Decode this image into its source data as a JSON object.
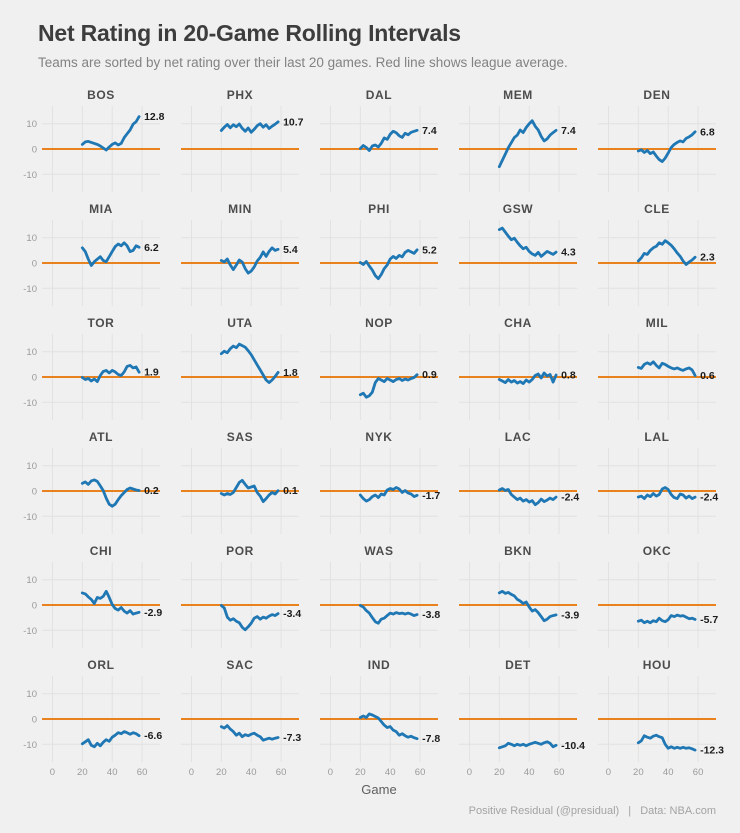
{
  "header": {
    "title": "Net Rating in 20-Game Rolling Intervals",
    "subtitle": "Teams are sorted by net rating over their last 20 games. Red line shows league average."
  },
  "footer": {
    "xlabel": "Game",
    "caption_left": "Positive Residual (@presidual)",
    "caption_sep": "|",
    "caption_right": "Data: NBA.com"
  },
  "colors": {
    "background": "#f0f0f0",
    "gridline": "#e1e1e1",
    "team_line": "#1f77b4",
    "league_average_line": "#e8821e",
    "title": "#3d3d3d",
    "subtitle": "#828282",
    "panel_title": "#4c4c4c",
    "tick_label": "#9a9a9a",
    "value_label": "#1c1c1c",
    "caption": "#a3a3a3",
    "axis_title": "#5f5f5f"
  },
  "chart_data": {
    "type": "line",
    "title": "Net Rating in 20-Game Rolling Intervals",
    "subtitle": "Teams are sorted by net rating over their last 20 games. Red line shows league average.",
    "xlabel": "Game",
    "ylabel": "",
    "layout": "small-multiples 6 rows x 5 cols, sorted descending by last value",
    "grid": true,
    "legend": "none",
    "x_ticks": [
      0,
      20,
      40,
      60
    ],
    "y_ticks": [
      -10,
      0,
      10
    ],
    "xlim": [
      -7,
      72
    ],
    "ylim": [
      -17,
      17
    ],
    "league_average_y": 0,
    "x": [
      20,
      22,
      24,
      26,
      28,
      30,
      32,
      34,
      36,
      38,
      40,
      42,
      44,
      46,
      48,
      50,
      52,
      54,
      56,
      58
    ],
    "panels": [
      {
        "team": "BOS",
        "label": "12.8",
        "y": [
          1.8,
          2.8,
          3.0,
          2.6,
          2.2,
          1.8,
          1.2,
          0.4,
          -0.4,
          0.8,
          1.8,
          2.4,
          1.6,
          2.2,
          4.5,
          6.0,
          7.5,
          9.8,
          10.8,
          12.8
        ]
      },
      {
        "team": "PHX",
        "label": "10.7",
        "y": [
          7.3,
          8.6,
          9.7,
          8.4,
          9.6,
          8.8,
          9.9,
          8.2,
          7.0,
          8.3,
          6.6,
          7.8,
          9.2,
          10.0,
          8.6,
          9.6,
          8.1,
          9.0,
          9.8,
          10.7
        ]
      },
      {
        "team": "DAL",
        "label": "7.4",
        "y": [
          0.2,
          1.4,
          0.6,
          -0.6,
          1.2,
          1.6,
          0.8,
          2.2,
          4.4,
          3.8,
          5.8,
          7.0,
          6.4,
          5.2,
          4.6,
          6.2,
          5.6,
          6.6,
          7.0,
          7.4
        ]
      },
      {
        "team": "MEM",
        "label": "7.4",
        "y": [
          -7.0,
          -4.5,
          -2.0,
          0.5,
          2.5,
          4.5,
          5.5,
          7.5,
          6.5,
          8.5,
          10.0,
          11.2,
          9.0,
          7.5,
          5.0,
          3.2,
          4.0,
          5.5,
          6.5,
          7.4
        ]
      },
      {
        "team": "DEN",
        "label": "6.8",
        "y": [
          -0.8,
          -0.3,
          -1.4,
          -0.6,
          -1.8,
          -1.2,
          -2.8,
          -4.2,
          -5.0,
          -3.6,
          -1.6,
          0.6,
          1.8,
          2.6,
          3.2,
          2.8,
          4.2,
          4.8,
          5.6,
          6.8
        ]
      },
      {
        "team": "MIA",
        "label": "6.2",
        "y": [
          6.0,
          4.5,
          1.5,
          -1.0,
          0.5,
          1.5,
          2.5,
          1.0,
          0.5,
          2.5,
          4.5,
          6.5,
          7.5,
          6.8,
          8.0,
          6.8,
          4.5,
          5.0,
          6.8,
          6.2
        ]
      },
      {
        "team": "MIN",
        "label": "5.4",
        "y": [
          1.0,
          0.4,
          1.6,
          -0.8,
          -2.6,
          -0.8,
          1.2,
          0.4,
          -2.2,
          -4.0,
          -3.2,
          -1.6,
          0.8,
          2.2,
          4.4,
          2.6,
          4.6,
          6.0,
          5.0,
          5.4
        ]
      },
      {
        "team": "PHI",
        "label": "5.2",
        "y": [
          0.2,
          -0.6,
          0.6,
          -1.2,
          -2.8,
          -5.0,
          -6.2,
          -4.6,
          -2.2,
          -0.8,
          1.6,
          2.6,
          1.8,
          3.0,
          2.4,
          4.2,
          5.0,
          4.4,
          3.8,
          5.2
        ]
      },
      {
        "team": "GSW",
        "label": "4.3",
        "y": [
          13.2,
          13.8,
          12.2,
          10.6,
          9.2,
          9.8,
          8.2,
          6.8,
          5.6,
          6.2,
          4.6,
          3.6,
          3.0,
          4.2,
          2.6,
          3.6,
          4.6,
          4.0,
          3.4,
          4.3
        ]
      },
      {
        "team": "CLE",
        "label": "2.3",
        "y": [
          0.8,
          2.0,
          3.8,
          3.4,
          5.0,
          6.0,
          6.6,
          8.0,
          7.4,
          8.8,
          8.0,
          7.0,
          5.6,
          4.0,
          2.6,
          0.8,
          -0.6,
          0.4,
          1.2,
          2.3
        ]
      },
      {
        "team": "TOR",
        "label": "1.9",
        "y": [
          -0.2,
          -1.0,
          -0.6,
          -1.6,
          -0.8,
          -1.8,
          0.6,
          2.2,
          2.6,
          1.6,
          2.6,
          2.0,
          1.0,
          0.6,
          2.0,
          4.2,
          4.6,
          3.6,
          4.0,
          1.9
        ]
      },
      {
        "team": "UTA",
        "label": "1.8",
        "y": [
          9.2,
          10.2,
          9.6,
          11.2,
          12.2,
          11.6,
          13.0,
          12.4,
          11.8,
          10.4,
          8.8,
          6.8,
          4.8,
          2.8,
          0.8,
          -1.2,
          -2.2,
          -1.2,
          0.2,
          1.8
        ]
      },
      {
        "team": "NOP",
        "label": "0.9",
        "y": [
          -7.0,
          -6.4,
          -8.0,
          -7.4,
          -6.0,
          -2.2,
          -0.6,
          -1.2,
          -1.8,
          -0.6,
          -1.2,
          -1.8,
          -1.0,
          -0.6,
          -1.4,
          -0.8,
          -1.2,
          -0.6,
          -0.2,
          0.9
        ]
      },
      {
        "team": "CHA",
        "label": "0.8",
        "y": [
          -1.0,
          -1.6,
          -2.2,
          -1.0,
          -2.0,
          -1.4,
          -2.4,
          -1.8,
          -2.6,
          -1.2,
          -2.0,
          -1.0,
          0.6,
          1.2,
          -0.4,
          1.6,
          0.4,
          1.0,
          -2.0,
          0.8
        ]
      },
      {
        "team": "MIL",
        "label": "0.6",
        "y": [
          3.8,
          3.4,
          5.0,
          5.6,
          5.0,
          6.0,
          4.6,
          3.6,
          5.4,
          5.0,
          4.2,
          3.6,
          3.2,
          3.6,
          3.0,
          2.6,
          3.2,
          3.6,
          2.8,
          0.6
        ]
      },
      {
        "team": "ATL",
        "label": "0.2",
        "y": [
          3.0,
          3.6,
          2.6,
          4.0,
          4.4,
          3.8,
          2.0,
          0.2,
          -2.8,
          -5.2,
          -6.0,
          -5.2,
          -3.4,
          -1.8,
          -0.6,
          0.6,
          1.2,
          0.8,
          0.4,
          0.2
        ]
      },
      {
        "team": "SAS",
        "label": "0.1",
        "y": [
          -1.0,
          -1.6,
          -1.0,
          -1.4,
          -0.6,
          1.4,
          3.4,
          4.2,
          2.6,
          1.2,
          1.6,
          2.0,
          -0.6,
          -2.0,
          -4.2,
          -3.0,
          -1.6,
          -0.6,
          -1.2,
          0.1
        ]
      },
      {
        "team": "NYK",
        "label": "-1.7",
        "y": [
          -1.6,
          -3.0,
          -4.0,
          -3.4,
          -2.2,
          -1.6,
          -2.6,
          -1.2,
          -1.6,
          0.4,
          1.0,
          0.6,
          1.4,
          0.8,
          -0.6,
          0.2,
          -0.8,
          -1.2,
          -2.2,
          -1.7
        ]
      },
      {
        "team": "LAC",
        "label": "-2.4",
        "y": [
          0.4,
          1.0,
          0.2,
          0.6,
          -1.4,
          -2.4,
          -3.4,
          -2.8,
          -4.0,
          -3.4,
          -4.4,
          -3.8,
          -5.4,
          -4.6,
          -3.2,
          -4.2,
          -3.6,
          -2.8,
          -3.4,
          -2.4
        ]
      },
      {
        "team": "LAL",
        "label": "-2.4",
        "y": [
          -2.4,
          -2.0,
          -3.0,
          -1.6,
          -2.2,
          -1.0,
          -2.0,
          -1.4,
          0.8,
          1.4,
          0.6,
          -1.4,
          -2.6,
          -3.0,
          -1.2,
          -1.6,
          -2.8,
          -2.0,
          -3.0,
          -2.4
        ]
      },
      {
        "team": "CHI",
        "label": "-2.9",
        "y": [
          4.8,
          4.4,
          3.2,
          2.2,
          0.6,
          3.0,
          2.6,
          3.4,
          5.4,
          3.0,
          0.2,
          -1.4,
          -2.0,
          -1.0,
          -2.4,
          -3.2,
          -2.2,
          -3.6,
          -3.2,
          -2.9
        ]
      },
      {
        "team": "POR",
        "label": "-3.4",
        "y": [
          -0.2,
          -1.2,
          -4.8,
          -6.0,
          -5.4,
          -6.4,
          -7.0,
          -8.8,
          -9.8,
          -8.6,
          -7.2,
          -5.2,
          -4.6,
          -5.6,
          -4.8,
          -5.2,
          -4.4,
          -3.8,
          -4.2,
          -3.4
        ]
      },
      {
        "team": "WAS",
        "label": "-3.8",
        "y": [
          -0.2,
          -0.8,
          -2.2,
          -3.2,
          -5.0,
          -6.6,
          -7.2,
          -5.6,
          -5.2,
          -4.2,
          -3.2,
          -3.6,
          -3.0,
          -3.4,
          -3.2,
          -3.6,
          -3.2,
          -3.6,
          -4.2,
          -3.8
        ]
      },
      {
        "team": "BKN",
        "label": "-3.9",
        "y": [
          4.8,
          5.4,
          4.6,
          5.0,
          4.2,
          3.6,
          2.2,
          1.6,
          0.6,
          1.2,
          -0.8,
          -2.4,
          -1.8,
          -3.0,
          -4.6,
          -6.2,
          -5.6,
          -4.6,
          -4.2,
          -3.9
        ]
      },
      {
        "team": "OKC",
        "label": "-5.7",
        "y": [
          -6.4,
          -6.0,
          -7.0,
          -6.4,
          -7.0,
          -6.2,
          -6.6,
          -5.2,
          -6.2,
          -6.6,
          -5.8,
          -4.2,
          -4.6,
          -4.0,
          -4.4,
          -4.2,
          -4.8,
          -5.4,
          -5.2,
          -5.7
        ]
      },
      {
        "team": "ORL",
        "label": "-6.6",
        "y": [
          -9.8,
          -9.0,
          -8.2,
          -10.4,
          -11.0,
          -9.6,
          -10.6,
          -9.2,
          -8.2,
          -8.8,
          -7.2,
          -6.4,
          -5.4,
          -5.8,
          -5.0,
          -5.4,
          -6.0,
          -5.4,
          -5.8,
          -6.6
        ]
      },
      {
        "team": "SAC",
        "label": "-7.3",
        "y": [
          -3.0,
          -3.6,
          -2.6,
          -4.0,
          -5.0,
          -6.4,
          -5.6,
          -7.0,
          -6.2,
          -6.6,
          -6.0,
          -5.6,
          -6.4,
          -7.0,
          -8.4,
          -8.0,
          -7.6,
          -8.0,
          -7.6,
          -7.3
        ]
      },
      {
        "team": "IND",
        "label": "-7.8",
        "y": [
          0.6,
          1.2,
          0.6,
          2.0,
          1.6,
          1.0,
          0.4,
          -1.0,
          -2.4,
          -3.4,
          -3.0,
          -4.4,
          -5.0,
          -6.4,
          -5.8,
          -6.6,
          -7.2,
          -6.8,
          -7.4,
          -7.8
        ]
      },
      {
        "team": "DET",
        "label": "-10.4",
        "y": [
          -11.4,
          -11.0,
          -10.6,
          -9.6,
          -10.0,
          -10.6,
          -10.0,
          -10.4,
          -10.0,
          -10.6,
          -10.0,
          -9.6,
          -9.2,
          -9.6,
          -10.0,
          -9.4,
          -9.0,
          -9.6,
          -11.0,
          -10.4
        ]
      },
      {
        "team": "HOU",
        "label": "-12.3",
        "y": [
          -9.4,
          -8.6,
          -6.6,
          -7.2,
          -7.6,
          -6.8,
          -6.4,
          -7.0,
          -7.4,
          -10.0,
          -11.6,
          -11.0,
          -11.6,
          -11.2,
          -11.6,
          -11.2,
          -11.6,
          -11.4,
          -11.8,
          -12.3
        ]
      }
    ]
  }
}
